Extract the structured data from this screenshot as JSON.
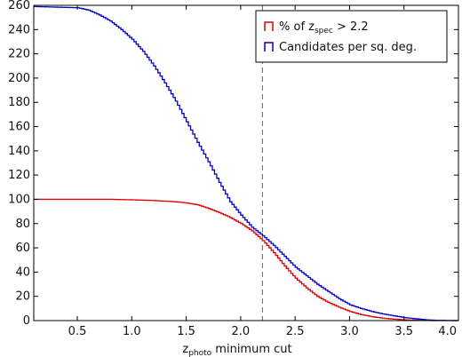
{
  "chart_data": {
    "type": "line",
    "step": true,
    "xlabel_main": "z",
    "xlabel_sub": "photo",
    "xlabel_rest": " minimum cut",
    "ylabel": "",
    "xlim": [
      0.1,
      4.0
    ],
    "ylim": [
      0,
      260
    ],
    "xticks": [
      0.5,
      1.0,
      1.5,
      2.0,
      2.5,
      3.0,
      3.5,
      4.0
    ],
    "yticks": [
      0,
      20,
      40,
      60,
      80,
      100,
      120,
      140,
      160,
      180,
      200,
      220,
      240,
      260
    ],
    "xtick_labels": [
      "0.5",
      "1.0",
      "1.5",
      "2.0",
      "2.5",
      "3.0",
      "3.5",
      "4.0"
    ],
    "ytick_labels": [
      "0",
      "20",
      "40",
      "60",
      "80",
      "100",
      "120",
      "140",
      "160",
      "180",
      "200",
      "220",
      "240",
      "260"
    ],
    "vline_x": 2.2,
    "legend_position": "top-right",
    "legend": {
      "red_main": "% of z",
      "red_sub": "spec",
      "red_rest": " > 2.2",
      "blue": "Candidates per sq. deg."
    },
    "series": [
      {
        "key": "percent",
        "color": "#e00000",
        "points": [
          [
            0.1,
            100
          ],
          [
            0.5,
            100
          ],
          [
            0.8,
            100
          ],
          [
            1.0,
            99.6
          ],
          [
            1.2,
            99
          ],
          [
            1.4,
            98
          ],
          [
            1.5,
            97
          ],
          [
            1.6,
            95.5
          ],
          [
            1.7,
            92.5
          ],
          [
            1.8,
            89
          ],
          [
            1.9,
            85
          ],
          [
            2.0,
            80
          ],
          [
            2.1,
            74
          ],
          [
            2.2,
            66
          ],
          [
            2.3,
            56
          ],
          [
            2.4,
            45
          ],
          [
            2.5,
            35
          ],
          [
            2.6,
            27
          ],
          [
            2.7,
            20
          ],
          [
            2.8,
            15
          ],
          [
            2.9,
            11
          ],
          [
            3.0,
            7.5
          ],
          [
            3.1,
            5
          ],
          [
            3.2,
            3.2
          ],
          [
            3.3,
            2
          ],
          [
            3.4,
            1.2
          ],
          [
            3.5,
            0.6
          ],
          [
            3.6,
            0.3
          ],
          [
            3.7,
            0.1
          ],
          [
            3.8,
            0
          ],
          [
            4.0,
            0
          ]
        ]
      },
      {
        "key": "candidates",
        "color": "#0000cc",
        "points": [
          [
            0.1,
            259
          ],
          [
            0.5,
            258
          ],
          [
            0.6,
            256
          ],
          [
            0.7,
            252
          ],
          [
            0.8,
            247
          ],
          [
            0.9,
            240
          ],
          [
            1.0,
            232
          ],
          [
            1.1,
            222
          ],
          [
            1.2,
            210
          ],
          [
            1.3,
            196
          ],
          [
            1.4,
            181
          ],
          [
            1.5,
            164
          ],
          [
            1.6,
            147
          ],
          [
            1.7,
            131
          ],
          [
            1.8,
            114
          ],
          [
            1.9,
            98
          ],
          [
            2.0,
            87
          ],
          [
            2.1,
            77
          ],
          [
            2.2,
            70
          ],
          [
            2.3,
            62
          ],
          [
            2.4,
            53
          ],
          [
            2.5,
            44
          ],
          [
            2.6,
            37
          ],
          [
            2.7,
            30
          ],
          [
            2.8,
            24
          ],
          [
            2.9,
            18
          ],
          [
            3.0,
            13
          ],
          [
            3.1,
            10
          ],
          [
            3.2,
            7.5
          ],
          [
            3.3,
            5.5
          ],
          [
            3.4,
            4
          ],
          [
            3.5,
            2.5
          ],
          [
            3.6,
            1.5
          ],
          [
            3.7,
            0.6
          ],
          [
            3.8,
            0.2
          ],
          [
            4.0,
            0
          ]
        ]
      }
    ]
  }
}
